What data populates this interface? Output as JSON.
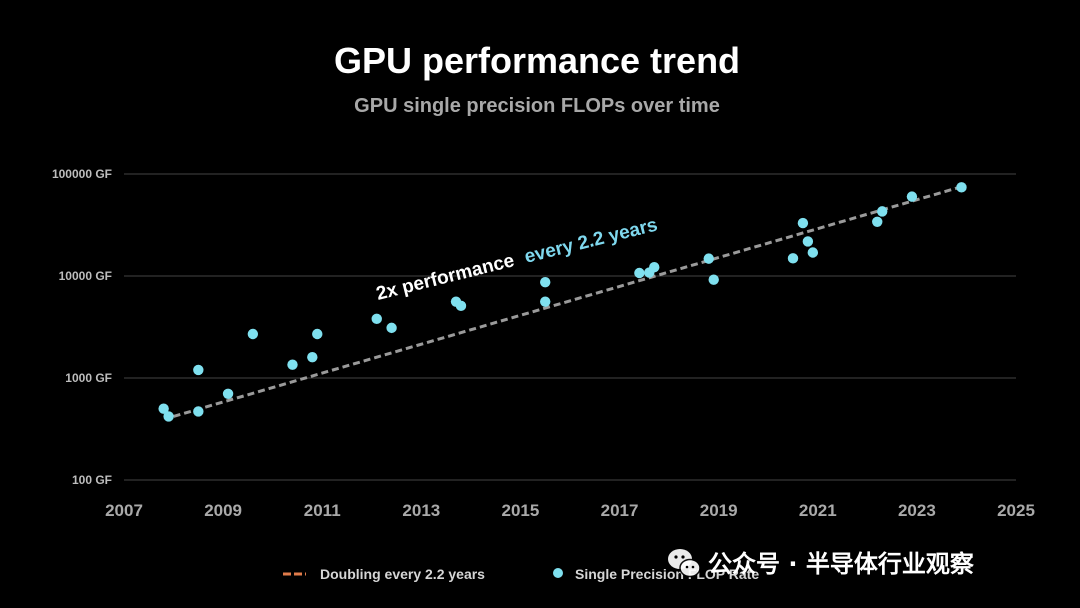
{
  "chart_data": {
    "type": "scatter",
    "title": "GPU performance trend",
    "subtitle": "GPU single precision FLOPs over time",
    "x_range": [
      2007,
      2025
    ],
    "x_ticks": [
      "2007",
      "2009",
      "2011",
      "2013",
      "2015",
      "2017",
      "2019",
      "2021",
      "2023",
      "2025"
    ],
    "y_scale": "log",
    "y_range": [
      100,
      100000
    ],
    "y_ticks": [
      "100 GF",
      "1000 GF",
      "10000 GF",
      "100000 GF"
    ],
    "grid": true,
    "legend_position": "bottom",
    "annotation": {
      "part1": "2x performance",
      "part2": "every 2.2 years",
      "part2_color": "#7fd8ee"
    },
    "series": [
      {
        "name": "Doubling every 2.2 years",
        "kind": "line",
        "style": "dashed",
        "color": "#9a9a9a",
        "legend_color": "#e07b4a",
        "x": [
          2008.0,
          2023.9
        ],
        "y": [
          420,
          75000
        ]
      },
      {
        "name": "Single Precision FLOP Rate",
        "kind": "scatter",
        "color": "#7fe0ef",
        "x": [
          2007.8,
          2007.9,
          2008.5,
          2008.5,
          2009.1,
          2009.6,
          2010.4,
          2010.8,
          2010.9,
          2012.1,
          2012.4,
          2013.7,
          2013.8,
          2015.5,
          2015.5,
          2017.4,
          2017.6,
          2017.7,
          2018.8,
          2018.9,
          2020.5,
          2020.7,
          2020.8,
          2020.9,
          2022.2,
          2022.3,
          2022.9,
          2023.9
        ],
        "y": [
          500,
          420,
          1200,
          470,
          700,
          2700,
          1350,
          1600,
          2700,
          3800,
          3100,
          5600,
          5100,
          8700,
          5600,
          10700,
          10800,
          12200,
          14800,
          9200,
          14900,
          33000,
          21800,
          17000,
          34000,
          43000,
          60000,
          74000
        ]
      }
    ]
  },
  "watermark": {
    "text": "公众号 · 半导体行业观察",
    "icon": "wechat-icon"
  }
}
